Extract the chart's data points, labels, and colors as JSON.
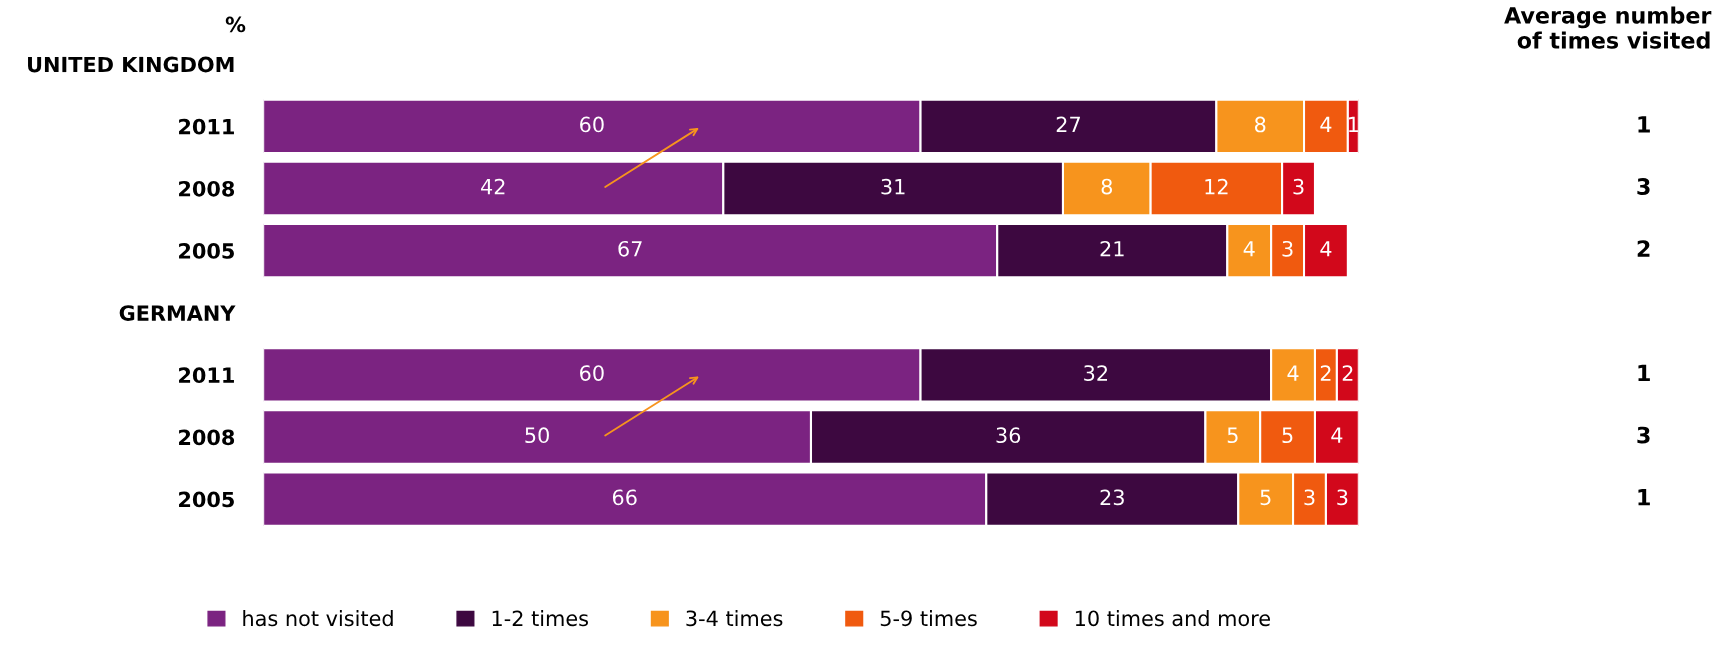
{
  "chart_data": {
    "type": "bar",
    "orientation": "horizontal",
    "stacked": true,
    "title": "%",
    "categories": [
      "UNITED KINGDOM",
      "2011",
      "2008",
      "2005",
      "GERMANY",
      "2011",
      "2008",
      "2005"
    ],
    "series": [
      {
        "name": "has not visited",
        "color": "#7b2381",
        "values": [
          null,
          60,
          42,
          67,
          null,
          60,
          50,
          66
        ]
      },
      {
        "name": "1-2 times",
        "color": "#3d0840",
        "values": [
          null,
          27,
          31,
          21,
          null,
          32,
          36,
          23
        ]
      },
      {
        "name": "3-4 times",
        "color": "#f7941d",
        "values": [
          null,
          8,
          8,
          4,
          null,
          4,
          5,
          5
        ]
      },
      {
        "name": "5-9 times",
        "color": "#f05a0f",
        "values": [
          null,
          4,
          12,
          3,
          null,
          2,
          5,
          3
        ]
      },
      {
        "name": "10 times and more",
        "color": "#d2081b",
        "values": [
          null,
          1,
          3,
          4,
          null,
          2,
          4,
          3
        ]
      }
    ],
    "xlim": [
      0,
      100
    ],
    "tick_labels": "y",
    "data_labels": true,
    "legend": "bottom",
    "grid": false,
    "annotations": [
      "Average number\nof times visited",
      "1",
      "3",
      "2",
      "1",
      "3",
      "1"
    ]
  }
}
